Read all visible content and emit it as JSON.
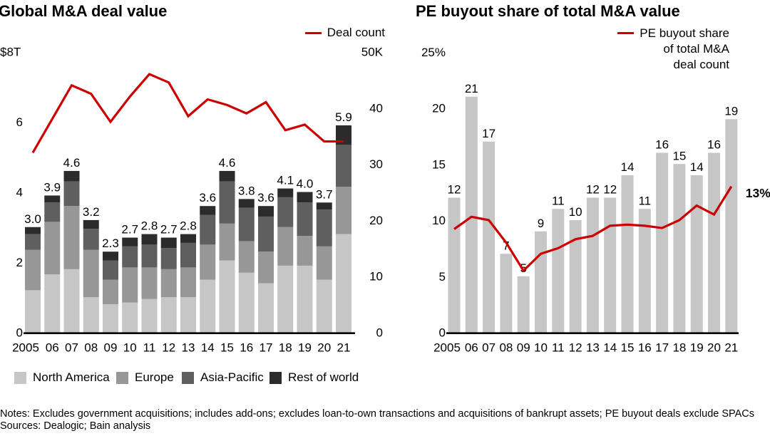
{
  "page": {
    "notes": "Notes: Excludes government acquisitions; includes add-ons; excludes loan-to-own transactions and acquisitions of bankrupt assets; PE buyout deals exclude SPACs",
    "sources": "Sources: Dealogic; Bain analysis"
  },
  "chart_data": [
    {
      "type": "bar",
      "stacked": true,
      "title": "Global M&A deal value",
      "y_top_label": "$8T",
      "ylim": [
        0,
        8
      ],
      "y_ticks": [
        0,
        2,
        4,
        6
      ],
      "right_axis": {
        "top_label": "50K",
        "ylim": [
          0,
          50
        ],
        "ticks": [
          0,
          10,
          20,
          30,
          40
        ],
        "unit": "thousand deals"
      },
      "grid": false,
      "legend_position": "bottom",
      "categories": [
        "2005",
        "06",
        "07",
        "08",
        "09",
        "10",
        "11",
        "12",
        "13",
        "14",
        "15",
        "16",
        "17",
        "18",
        "19",
        "20",
        "21"
      ],
      "series": [
        {
          "name": "North America",
          "color": "#c6c6c6",
          "values": [
            1.2,
            1.65,
            1.8,
            1.0,
            0.8,
            0.85,
            0.95,
            1.0,
            1.0,
            1.5,
            2.05,
            1.7,
            1.4,
            1.9,
            1.9,
            1.5,
            2.8
          ]
        },
        {
          "name": "Europe",
          "color": "#979797",
          "values": [
            1.15,
            1.5,
            1.8,
            1.35,
            0.7,
            1.0,
            0.9,
            0.8,
            0.85,
            1.0,
            1.05,
            0.9,
            0.9,
            1.1,
            0.85,
            0.95,
            1.35
          ]
        },
        {
          "name": "Asia-Pacific",
          "color": "#5f5f5f",
          "values": [
            0.45,
            0.55,
            0.7,
            0.6,
            0.55,
            0.6,
            0.65,
            0.6,
            0.7,
            0.85,
            1.2,
            0.95,
            1.0,
            0.85,
            0.95,
            1.05,
            1.2
          ]
        },
        {
          "name": "Rest of world",
          "color": "#2b2b2b",
          "values": [
            0.2,
            0.2,
            0.3,
            0.25,
            0.25,
            0.25,
            0.3,
            0.3,
            0.25,
            0.25,
            0.3,
            0.25,
            0.3,
            0.25,
            0.3,
            0.2,
            0.55
          ]
        }
      ],
      "total_labels": [
        "3.0",
        "3.9",
        "4.6",
        "3.2",
        "2.3",
        "2.7",
        "2.8",
        "2.7",
        "2.8",
        "3.6",
        "4.6",
        "3.8",
        "3.6",
        "4.1",
        "4.0",
        "3.7",
        "5.9"
      ],
      "line": {
        "name": "Deal count",
        "color": "#cc0000",
        "axis": "right",
        "unit": "thousands",
        "values": [
          32,
          38,
          44,
          42.5,
          37.5,
          42,
          46,
          44.5,
          38.5,
          41.5,
          40.5,
          39,
          41,
          36,
          37,
          34,
          34
        ]
      }
    },
    {
      "type": "bar",
      "stacked": false,
      "title": "PE buyout share of total M&A value",
      "y_top_label": "25%",
      "ylim": [
        0,
        25
      ],
      "y_ticks": [
        0,
        5,
        10,
        15,
        20
      ],
      "grid": false,
      "bar_color": "#c6c6c6",
      "categories": [
        "2005",
        "06",
        "07",
        "08",
        "09",
        "10",
        "11",
        "12",
        "13",
        "14",
        "15",
        "16",
        "17",
        "18",
        "19",
        "20",
        "21"
      ],
      "values": [
        12,
        21,
        17,
        7,
        5,
        9,
        11,
        10,
        12,
        12,
        14,
        11,
        16,
        15,
        14,
        16,
        19
      ],
      "line": {
        "name": "PE buyout share of total M&A deal count",
        "legend_lines": [
          "PE buyout share",
          "of total M&A",
          "deal count"
        ],
        "color": "#cc0000",
        "values": [
          9.2,
          10.3,
          10,
          8,
          5.5,
          7,
          7.5,
          8.3,
          8.6,
          9.5,
          9.6,
          9.5,
          9.3,
          10,
          11.3,
          10.5,
          13
        ],
        "end_label": "13%"
      }
    }
  ]
}
